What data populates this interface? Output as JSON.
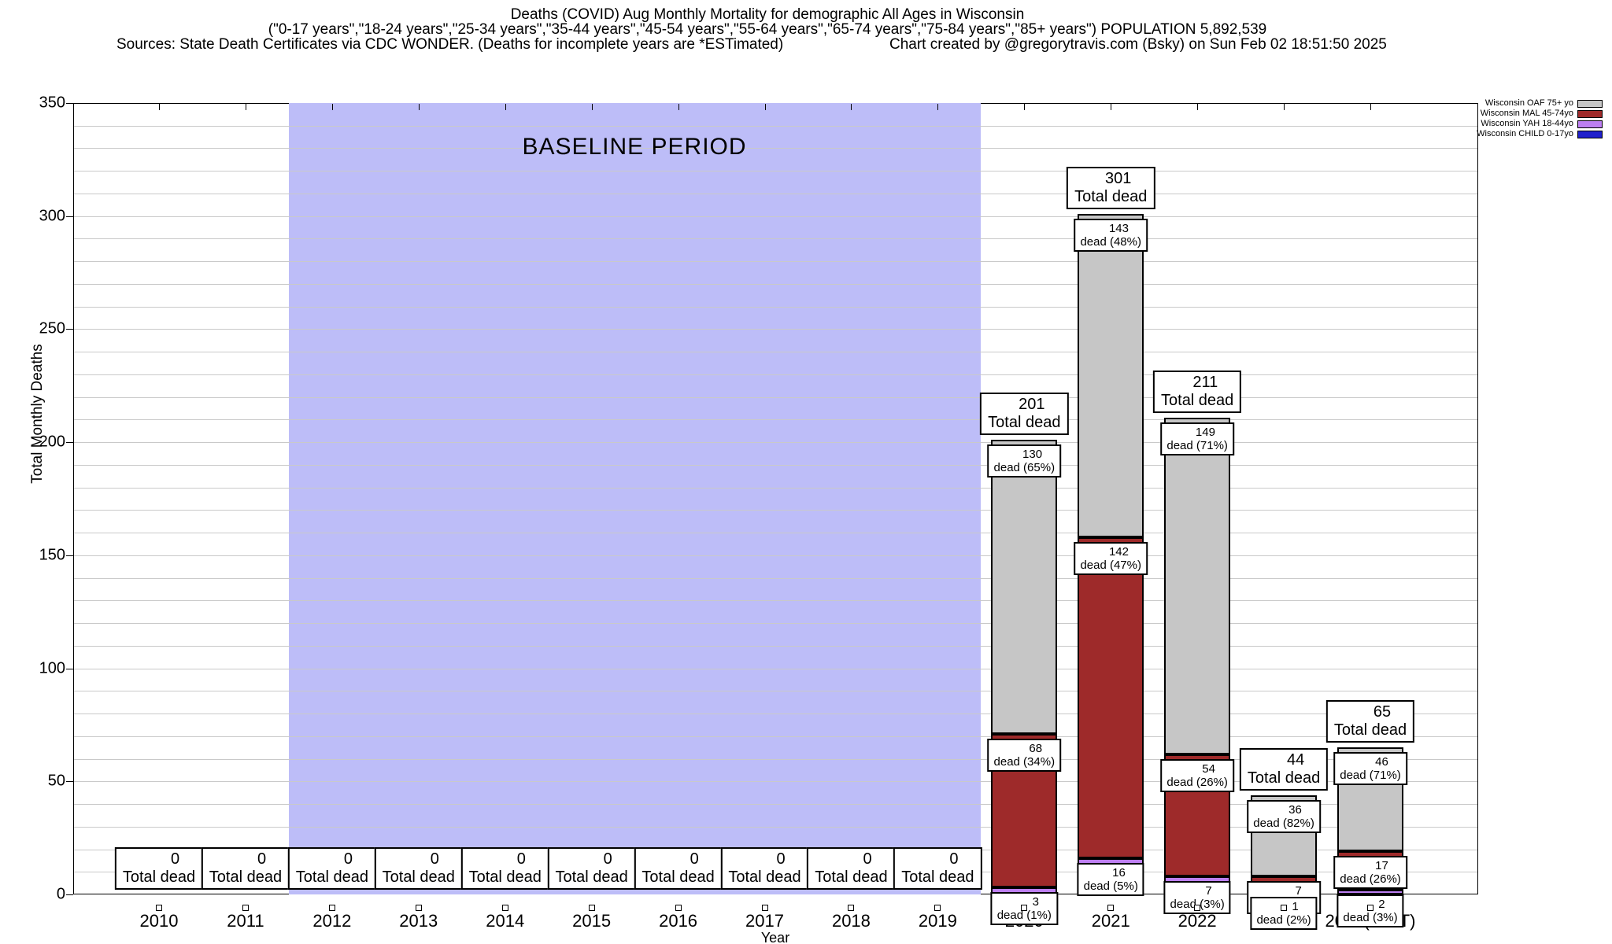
{
  "header": {
    "title_line1": "Deaths (COVID) Aug Monthly Mortality for demographic All Ages in Wisconsin",
    "title_line2": "(\"0-17 years\",\"18-24 years\",\"25-34 years\",\"35-44 years\",\"45-54 years\",\"55-64 years\",\"65-74 years\",\"75-84 years\",\"85+ years\") POPULATION 5,892,539",
    "sources": "Sources: State Death Certificates via CDC WONDER. (Deaths for incomplete years are *ESTimated)",
    "credit": "Chart created by @gregorytravis.com (Bsky) on Sun Feb 02 18:51:50 2025"
  },
  "legend": {
    "position": "top-right",
    "entries": [
      {
        "label": "Wisconsin OAF 75+ yo",
        "color": "#c6c6c6"
      },
      {
        "label": "Wisconsin MAL 45-74yo",
        "color": "#9e2a2a"
      },
      {
        "label": "Wisconsin YAH 18-44yo",
        "color": "#bd7ff2"
      },
      {
        "label": "Wisconsin CHILD 0-17yo",
        "color": "#2121cc"
      }
    ]
  },
  "chart_data": {
    "type": "bar",
    "stacked": true,
    "title": "Deaths (COVID) Aug Monthly Mortality for demographic All Ages in Wisconsin",
    "xlabel": "Year",
    "ylabel": "Total Monthly Deaths",
    "ylim": [
      0,
      350
    ],
    "yticks_major": [
      0,
      50,
      100,
      150,
      200,
      250,
      300,
      350
    ],
    "grid_minor_step": 10,
    "grid": true,
    "legend_position": "top-right",
    "categories": [
      "2010",
      "2011",
      "2012",
      "2013",
      "2014",
      "2015",
      "2016",
      "2017",
      "2018",
      "2019",
      "2020",
      "2021",
      "2022",
      "2023",
      "2024(*EST)"
    ],
    "series": [
      {
        "key": "child",
        "name": "Wisconsin CHILD 0-17yo",
        "color": "#2121cc",
        "values": [
          0,
          0,
          0,
          0,
          0,
          0,
          0,
          0,
          0,
          0,
          0,
          0,
          1,
          0,
          0
        ]
      },
      {
        "key": "yah",
        "name": "Wisconsin YAH 18-44yo",
        "color": "#bd7ff2",
        "values": [
          0,
          0,
          0,
          0,
          0,
          0,
          0,
          0,
          0,
          0,
          3,
          16,
          7,
          1,
          2
        ]
      },
      {
        "key": "mal",
        "name": "Wisconsin MAL 45-74yo",
        "color": "#9e2a2a",
        "values": [
          0,
          0,
          0,
          0,
          0,
          0,
          0,
          0,
          0,
          0,
          68,
          142,
          54,
          7,
          17
        ]
      },
      {
        "key": "oaf",
        "name": "Wisconsin OAF 75+ yo",
        "color": "#c6c6c6",
        "values": [
          0,
          0,
          0,
          0,
          0,
          0,
          0,
          0,
          0,
          0,
          130,
          143,
          149,
          36,
          46
        ]
      }
    ],
    "totals": [
      0,
      0,
      0,
      0,
      0,
      0,
      0,
      0,
      0,
      0,
      201,
      301,
      211,
      44,
      65
    ],
    "total_box_label": "Total dead",
    "segment_labels": {
      "2020": [
        {
          "series": "yah",
          "value": "3",
          "detail": "dead (1%)"
        },
        {
          "series": "mal",
          "value": "68",
          "detail": "dead (34%)"
        },
        {
          "series": "oaf",
          "value": "130",
          "detail": "dead (65%)"
        }
      ],
      "2021": [
        {
          "series": "yah",
          "value": "16",
          "detail": "dead (5%)"
        },
        {
          "series": "mal",
          "value": "142",
          "detail": "dead (47%)"
        },
        {
          "series": "oaf",
          "value": "143",
          "detail": "dead (48%)"
        }
      ],
      "2022": [
        {
          "series": "yah",
          "value": "7",
          "detail": "dead (3%)"
        },
        {
          "series": "mal",
          "value": "54",
          "detail": "dead (26%)"
        },
        {
          "series": "oaf",
          "value": "149",
          "detail": "dead (71%)"
        }
      ],
      "2023": [
        {
          "series": "yah",
          "value": "1",
          "detail": "dead (2%)"
        },
        {
          "series": "mal",
          "value": "7",
          "detail": "dead (16%)"
        },
        {
          "series": "oaf",
          "value": "36",
          "detail": "dead (82%)"
        }
      ],
      "2024(*EST)": [
        {
          "series": "yah",
          "value": "2",
          "detail": "dead (3%)"
        },
        {
          "series": "mal",
          "value": "17",
          "detail": "dead (26%)"
        },
        {
          "series": "oaf",
          "value": "46",
          "detail": "dead (71%)"
        }
      ]
    },
    "baseline": {
      "label": "BASELINE PERIOD",
      "start_category": "2012",
      "end_category": "2019",
      "color": "#bdbdf8"
    }
  }
}
